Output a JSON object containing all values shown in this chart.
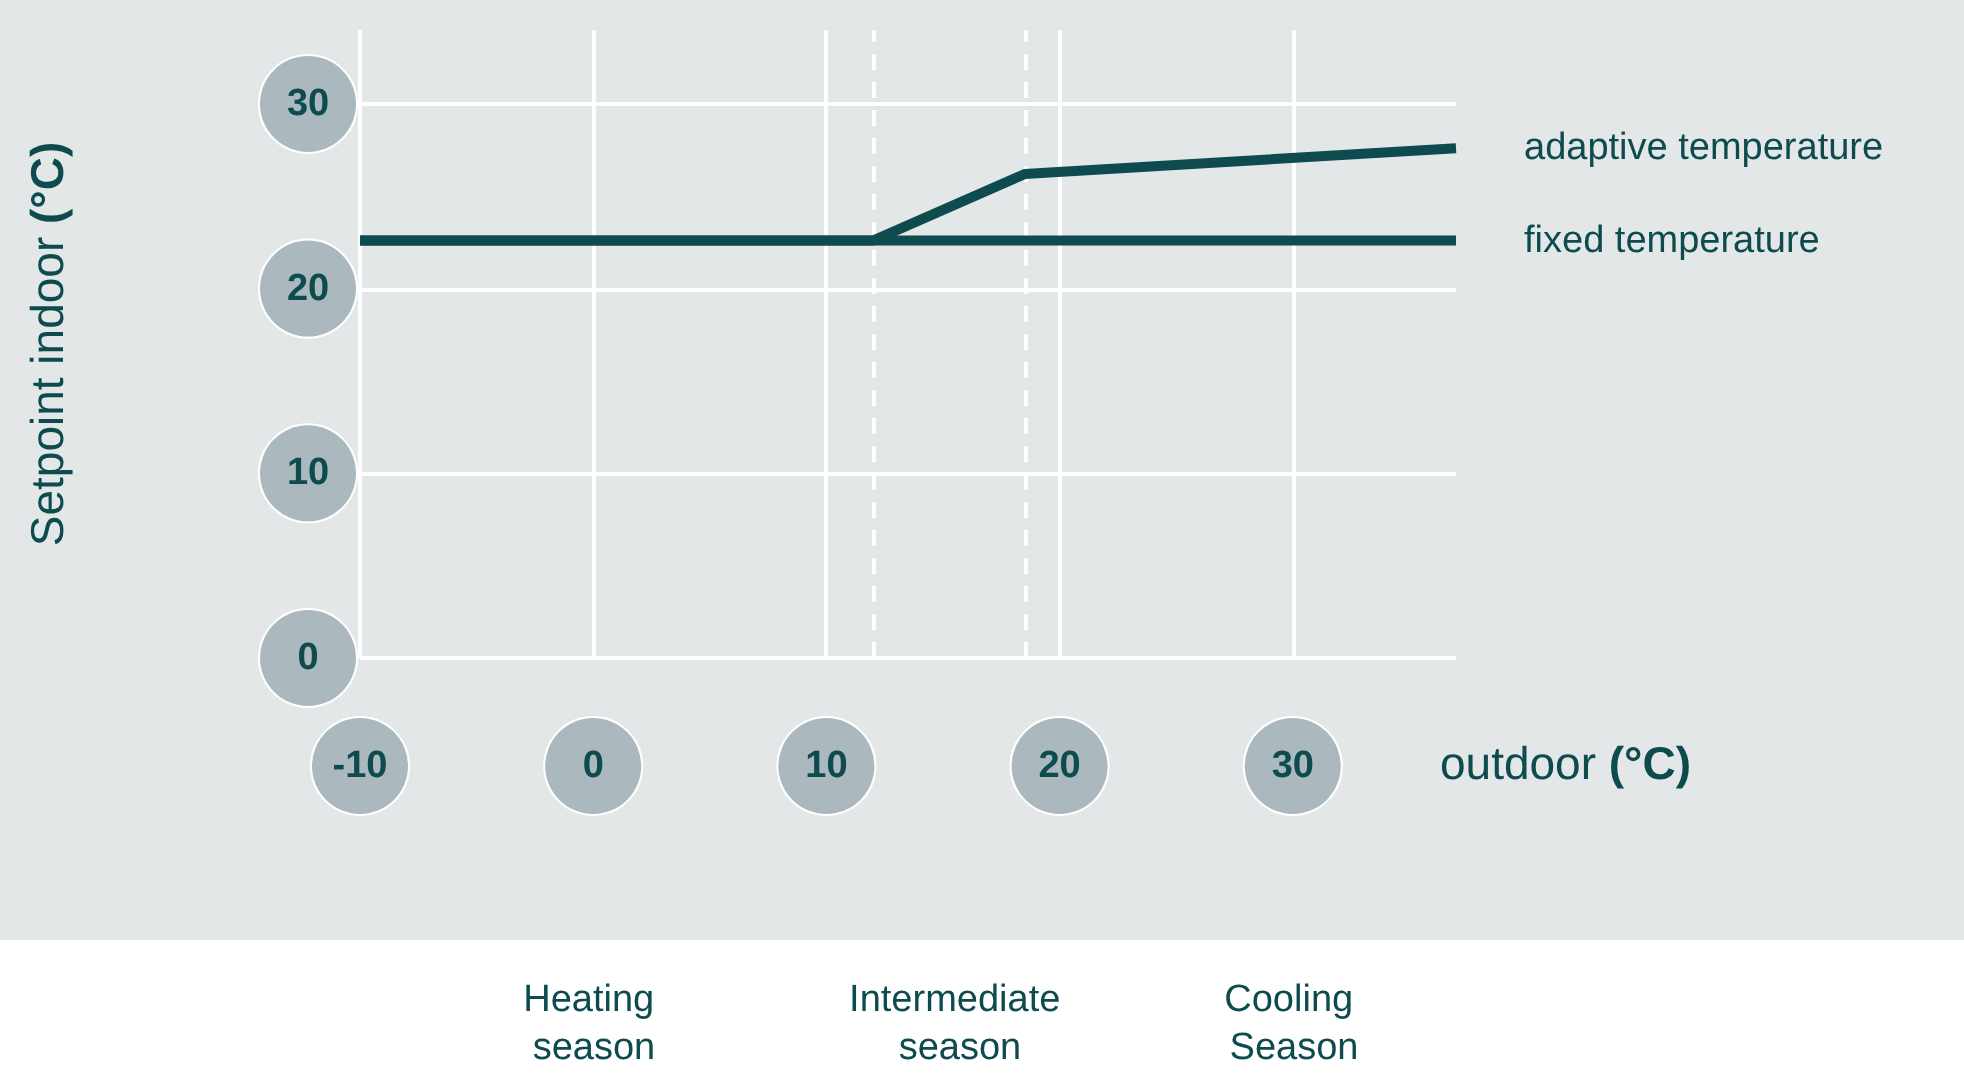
{
  "chart_data": {
    "type": "line",
    "xlabel": "outdoor (°C)",
    "ylabel": "Setpoint indoor (°C)",
    "xlim": [
      -10,
      37
    ],
    "ylim": [
      0,
      34
    ],
    "xticks": [
      -10,
      0,
      10,
      20,
      30
    ],
    "yticks": [
      0,
      10,
      20,
      30
    ],
    "grid": true,
    "marker": "none",
    "series": [
      {
        "name": "adaptive temperature",
        "color": "#0d4b4f",
        "x": [
          -10,
          12,
          18.5,
          37
        ],
        "values": [
          22.6,
          22.6,
          26.2,
          27.6
        ]
      },
      {
        "name": "fixed temperature",
        "color": "#0d4b4f",
        "x": [
          -10,
          37
        ],
        "values": [
          22.6,
          22.6
        ]
      }
    ],
    "ref_lines": [
      {
        "axis": "x",
        "value": 12,
        "color": "#ffffff",
        "line_style": "dashed"
      },
      {
        "axis": "x",
        "value": 18.5,
        "color": "#ffffff",
        "line_style": "dashed"
      }
    ],
    "annotations": [
      "Heating season",
      "Intermediate season",
      "Cooling Season"
    ]
  }
}
